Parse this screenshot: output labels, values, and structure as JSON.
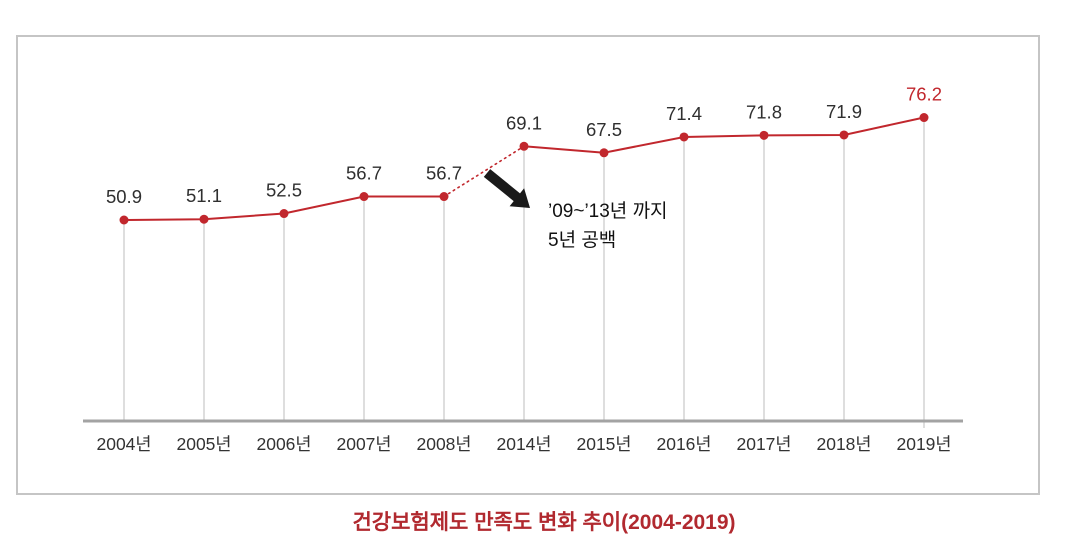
{
  "chart_data": {
    "type": "line",
    "title": "건강보험제도 만족도 변화 추이(2004-2019)",
    "categories": [
      "2004년",
      "2005년",
      "2006년",
      "2007년",
      "2008년",
      "2014년",
      "2015년",
      "2016년",
      "2017년",
      "2018년",
      "2019년"
    ],
    "values": [
      50.9,
      51.1,
      52.5,
      56.7,
      56.7,
      69.1,
      67.5,
      71.4,
      71.8,
      71.9,
      76.2
    ],
    "data_labels_shown": true,
    "gap_segment": {
      "from": "2008년",
      "to": "2014년",
      "style": "dotted"
    },
    "annotation": {
      "lines": [
        "’09~’13년 까지",
        "5년 공백"
      ],
      "arrow": "down-right"
    },
    "highlight": {
      "category": "2019년",
      "value": 76.2,
      "color": "#c1272d"
    },
    "ylim": [
      45,
      80
    ],
    "grid": "vertical-drop-lines",
    "legend": "none",
    "colors": {
      "line": "#c1272d",
      "marker": "#c1272d",
      "value_label": "#2f2f2f",
      "highlight_label": "#c1272d",
      "x_label": "#333333",
      "axis_line": "#a3a3a3",
      "drop_line": "#c9c9c9",
      "title": "#b1292f",
      "annotation_text": "#111111",
      "arrow": "#1a1a1a",
      "frame_border": "#c5c5c5"
    }
  }
}
